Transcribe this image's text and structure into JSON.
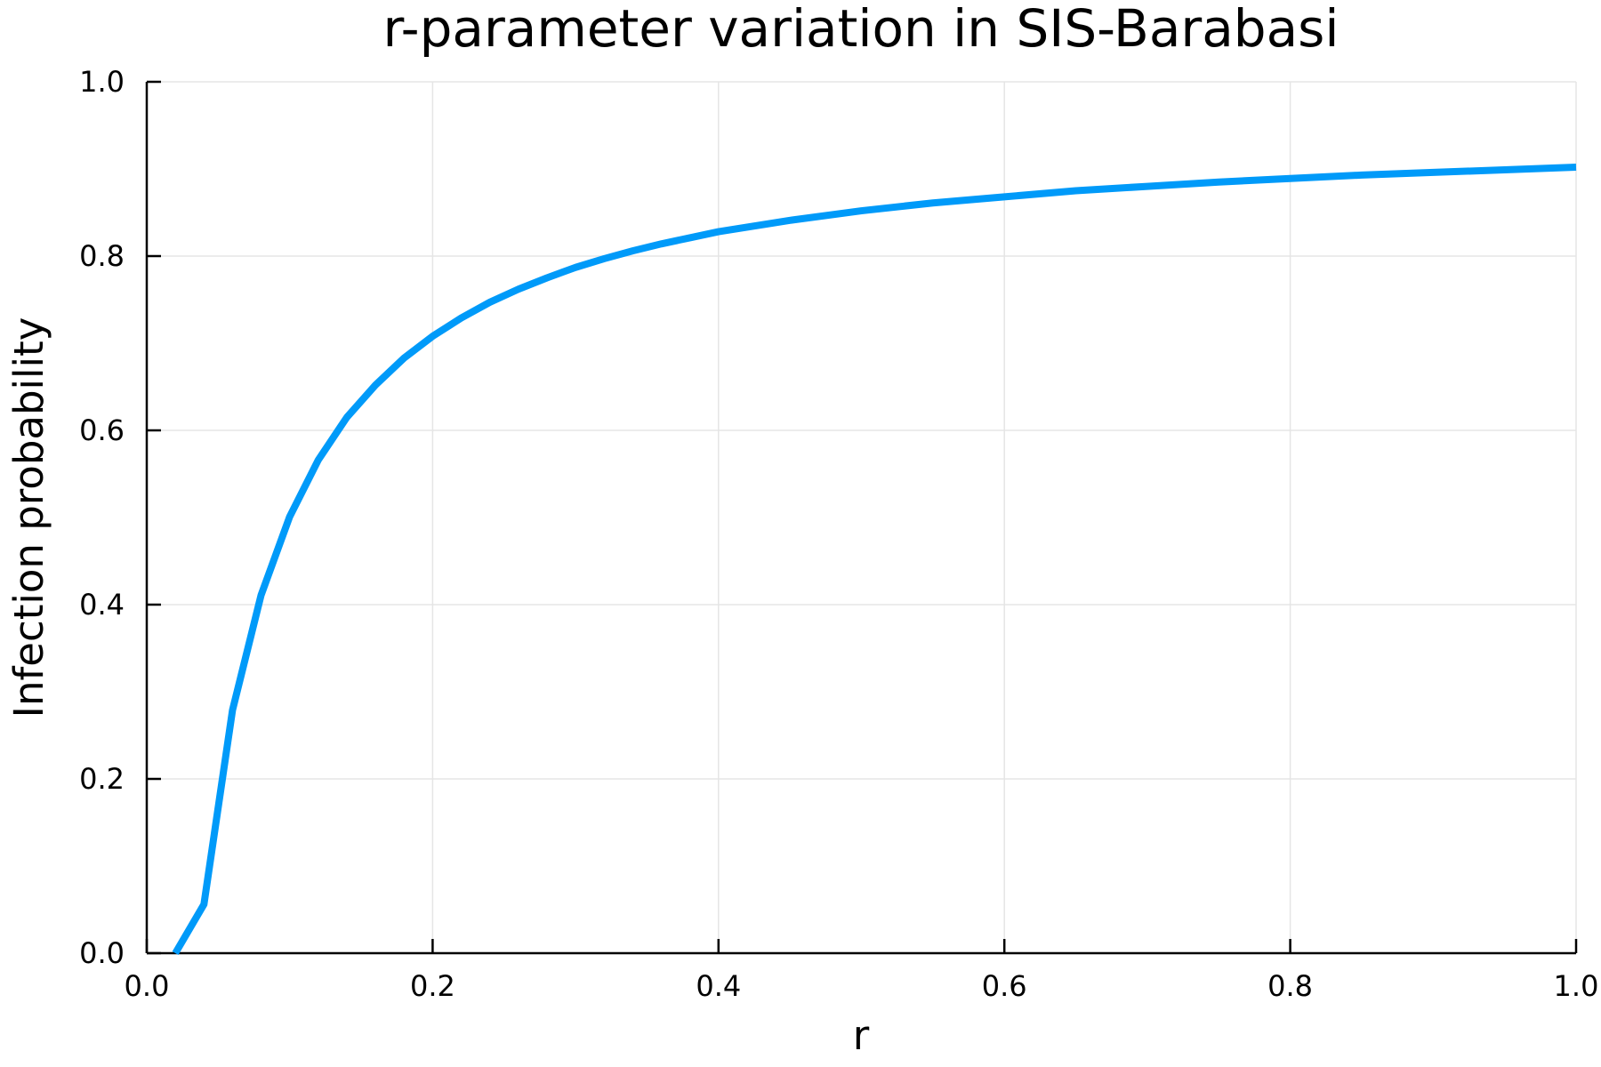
{
  "chart_data": {
    "type": "line",
    "title": "r-parameter variation in SIS-Barabasi",
    "xlabel": "r",
    "ylabel": "Infection probability",
    "xlim": [
      0.0,
      1.0
    ],
    "ylim": [
      0.0,
      1.0
    ],
    "xticks": [
      "0.0",
      "0.2",
      "0.4",
      "0.6",
      "0.8",
      "1.0"
    ],
    "yticks": [
      "0.0",
      "0.2",
      "0.4",
      "0.6",
      "0.8",
      "1.0"
    ],
    "grid": true,
    "legend": false,
    "series": [
      {
        "color": "#009af9",
        "x": [
          0.02,
          0.04,
          0.06,
          0.08,
          0.1,
          0.12,
          0.14,
          0.16,
          0.18,
          0.2,
          0.22,
          0.24,
          0.26,
          0.28,
          0.3,
          0.32,
          0.34,
          0.36,
          0.38,
          0.4,
          0.45,
          0.5,
          0.55,
          0.6,
          0.65,
          0.7,
          0.75,
          0.8,
          0.85,
          0.9,
          0.95,
          1.0
        ],
        "y": [
          0.0,
          0.056,
          0.279,
          0.411,
          0.501,
          0.566,
          0.615,
          0.652,
          0.683,
          0.708,
          0.729,
          0.747,
          0.762,
          0.775,
          0.787,
          0.797,
          0.806,
          0.814,
          0.821,
          0.828,
          0.841,
          0.852,
          0.861,
          0.868,
          0.875,
          0.88,
          0.885,
          0.889,
          0.893,
          0.896,
          0.899,
          0.902
        ]
      }
    ]
  }
}
